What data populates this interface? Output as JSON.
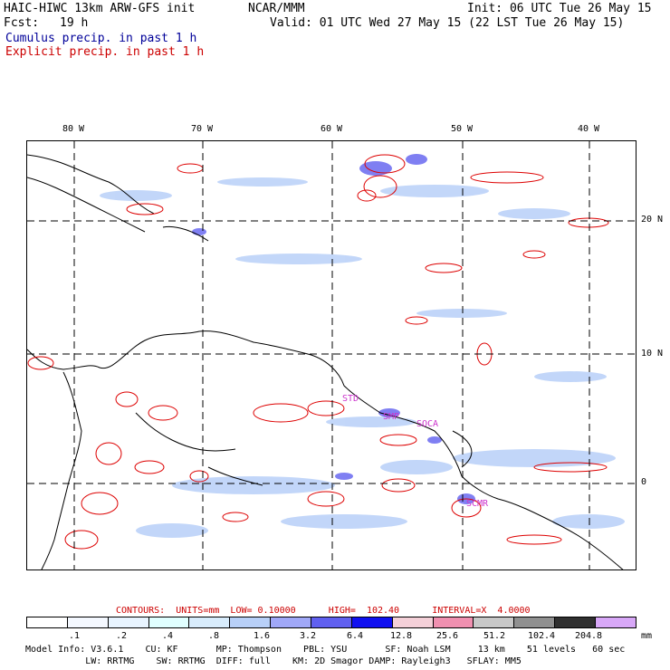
{
  "header": {
    "model_title": "HAIC-HIWC 13km ARW-GFS init",
    "org": "NCAR/MMM",
    "init": "Init: 06 UTC Tue 26 May 15",
    "fcst_label": "Fcst:",
    "fcst_value": "19 h",
    "valid": "Valid: 01 UTC Wed 27 May 15 (22 LST Tue 26 May 15)",
    "cumulus": "Cumulus precip. in past 1 h",
    "explicit": "Explicit precip. in past 1 h"
  },
  "map": {
    "lon_labels": [
      "80 W",
      "70 W",
      "60 W",
      "50 W",
      "40 W"
    ],
    "lat_labels": [
      "20 N",
      "10 N",
      "0"
    ],
    "stations": [
      "STD",
      "SMP",
      "SOCA",
      "SCMR"
    ]
  },
  "colors": {
    "cumulus": "#3333cc",
    "explicit": "#dd0000",
    "station": "#cc33cc"
  },
  "legend": {
    "contours_line": "CONTOURS:  UNITS=mm  LOW= 0.10000      HIGH=  102.40      INTERVAL=X  4.0000",
    "colors": [
      "#ffffff",
      "#f4f8ff",
      "#e8f4ff",
      "#e0ffff",
      "#d8ecfc",
      "#b8d0f8",
      "#a0a8f8",
      "#6060f0",
      "#1010f0",
      "#f4d0d8",
      "#f090b0",
      "#c8c8c8",
      "#909090",
      "#303030",
      "#d8a8f8"
    ],
    "values": [
      ".1",
      ".2",
      ".4",
      ".8",
      "1.6",
      "3.2",
      "6.4",
      "12.8",
      "25.6",
      "51.2",
      "102.4",
      "204.8"
    ],
    "units": "mm"
  },
  "model_info": {
    "line1": "Model Info: V3.6.1    CU: KF       MP: Thompson    PBL: YSU       SF: Noah LSM     13 km    51 levels   60 sec",
    "line2": "           LW: RRTMG    SW: RRTMG  DIFF: full    KM: 2D Smagor DAMP: Rayleigh3   SFLAY: MM5"
  }
}
